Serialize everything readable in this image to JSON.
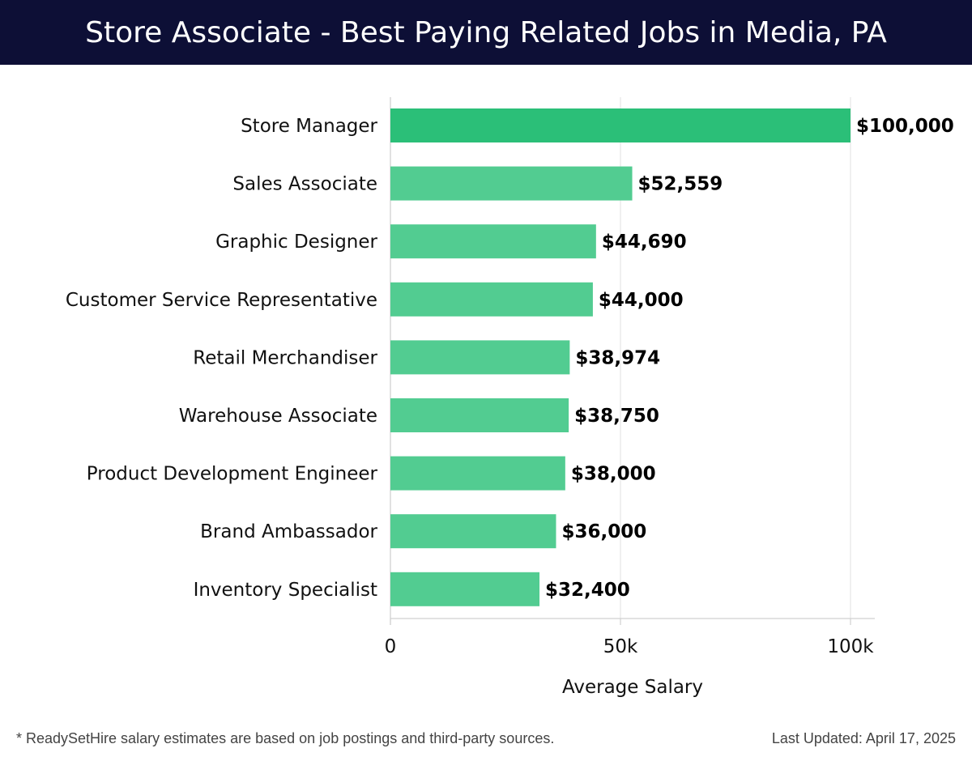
{
  "header": {
    "title": "Store Associate - Best Paying Related Jobs in Media, PA"
  },
  "colors": {
    "header_bg": "#0d0f36",
    "top_bar": "#2bbf78",
    "bar": "#52cc91",
    "grid": "#e6e6e6"
  },
  "chart_data": {
    "type": "bar",
    "orientation": "horizontal",
    "categories": [
      "Store Manager",
      "Sales Associate",
      "Graphic Designer",
      "Customer Service Representative",
      "Retail Merchandiser",
      "Warehouse Associate",
      "Product Development Engineer",
      "Brand Ambassador",
      "Inventory Specialist"
    ],
    "values": [
      100000,
      52559,
      44690,
      44000,
      38974,
      38750,
      38000,
      36000,
      32400
    ],
    "data_labels": [
      "$100,000",
      "$52,559",
      "$44,690",
      "$44,000",
      "$38,974",
      "$38,750",
      "$38,000",
      "$36,000",
      "$32,400"
    ],
    "xlabel": "Average Salary",
    "ylabel": "",
    "xlim": [
      0,
      105000
    ],
    "x_ticks": [
      0,
      50000,
      100000
    ],
    "x_tick_labels": [
      "0",
      "50k",
      "100k"
    ],
    "grid": "vertical"
  },
  "footer": {
    "note": "* ReadySetHire salary estimates are based on job postings and third-party sources.",
    "updated": "Last Updated: April 17, 2025"
  }
}
